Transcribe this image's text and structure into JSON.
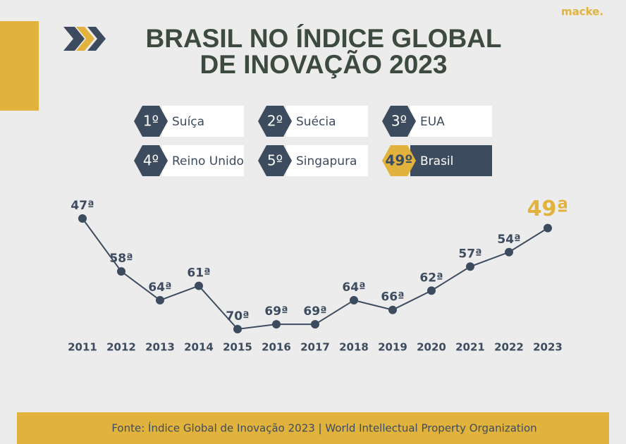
{
  "brand": "macke.",
  "title": [
    "BRASIL NO ÍNDICE GLOBAL",
    "DE INOVAÇÃO 2023"
  ],
  "ranking": [
    {
      "position": "1º",
      "country": "Suíça"
    },
    {
      "position": "2º",
      "country": "Suécia"
    },
    {
      "position": "3º",
      "country": "EUA"
    },
    {
      "position": "4º",
      "country": "Reino Unido"
    },
    {
      "position": "5º",
      "country": "Singapura"
    },
    {
      "position": "49º",
      "country": "Brasil"
    }
  ],
  "chart_data": {
    "type": "line",
    "categories": [
      "2011",
      "2012",
      "2013",
      "2014",
      "2015",
      "2016",
      "2017",
      "2018",
      "2019",
      "2020",
      "2021",
      "2022",
      "2023"
    ],
    "values": [
      47,
      58,
      64,
      61,
      70,
      69,
      69,
      64,
      66,
      62,
      57,
      54,
      49
    ],
    "value_labels": [
      "47ª",
      "58ª",
      "64ª",
      "61ª",
      "70ª",
      "69ª",
      "69ª",
      "64ª",
      "66ª",
      "62ª",
      "57ª",
      "54ª",
      "49ª"
    ],
    "color": "#3d4b5e"
  },
  "source": "Fonte: Índice Global de Inovação 2023 | World Intellectual Property Organization"
}
